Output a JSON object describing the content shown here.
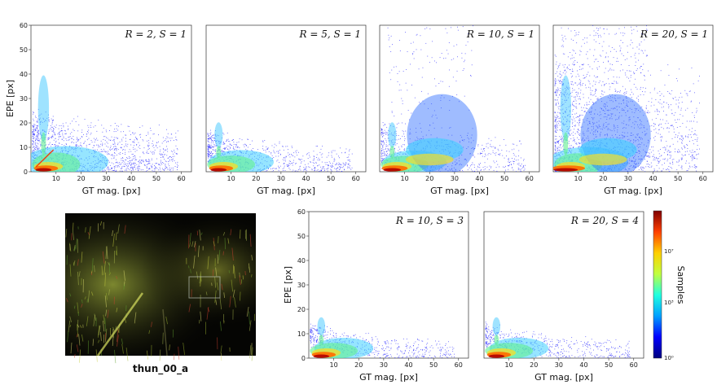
{
  "chart_data": [
    {
      "type": "heatmap",
      "id": "p1",
      "title": "R = 2, S = 1",
      "xlabel": "GT mag. [px]",
      "ylabel": "EPE [px]",
      "xlim": [
        0,
        64
      ],
      "ylim": [
        0,
        60
      ],
      "xticks": [
        "10",
        "20",
        "30",
        "40",
        "50",
        "60"
      ],
      "yticks": [
        "0",
        "10",
        "20",
        "30",
        "40",
        "50",
        "60"
      ]
    },
    {
      "type": "heatmap",
      "id": "p2",
      "title": "R = 5, S = 1",
      "xlabel": "GT mag. [px]",
      "ylabel": "",
      "xlim": [
        0,
        64
      ],
      "ylim": [
        0,
        60
      ],
      "xticks": [
        "10",
        "20",
        "30",
        "40",
        "50",
        "60"
      ],
      "yticks": []
    },
    {
      "type": "heatmap",
      "id": "p3",
      "title": "R = 10, S = 1",
      "xlabel": "GT mag. [px]",
      "ylabel": "",
      "xlim": [
        0,
        64
      ],
      "ylim": [
        0,
        60
      ],
      "xticks": [
        "10",
        "20",
        "30",
        "40",
        "50",
        "60"
      ],
      "yticks": []
    },
    {
      "type": "heatmap",
      "id": "p4",
      "title": "R = 20, S = 1",
      "xlabel": "GT mag. [px]",
      "ylabel": "",
      "xlim": [
        0,
        64
      ],
      "ylim": [
        0,
        60
      ],
      "xticks": [
        "10",
        "20",
        "30",
        "40",
        "50",
        "60"
      ],
      "yticks": []
    },
    {
      "type": "heatmap",
      "id": "p5",
      "title": "R = 10, S = 3",
      "xlabel": "GT mag. [px]",
      "ylabel": "EPE [px]",
      "xlim": [
        0,
        64
      ],
      "ylim": [
        0,
        60
      ],
      "xticks": [
        "10",
        "20",
        "30",
        "40",
        "50",
        "60"
      ],
      "yticks": [
        "0",
        "10",
        "20",
        "30",
        "40",
        "50",
        "60"
      ]
    },
    {
      "type": "heatmap",
      "id": "p6",
      "title": "R = 20, S = 4",
      "xlabel": "GT mag. [px]",
      "ylabel": "",
      "xlim": [
        0,
        64
      ],
      "ylim": [
        0,
        60
      ],
      "xticks": [
        "10",
        "20",
        "30",
        "40",
        "50",
        "60"
      ],
      "yticks": []
    }
  ],
  "colorbar": {
    "label": "Samples",
    "scale": "log",
    "tick_labels": [
      "10⁰",
      "10³",
      "10⁷"
    ],
    "colors": [
      "#00007f",
      "#0000ff",
      "#00a0ff",
      "#20ffe0",
      "#c0ff40",
      "#ffd000",
      "#ff4000",
      "#7f0000"
    ]
  },
  "image_caption": "thun_00_a",
  "colors": {
    "low": "#1a1aff",
    "mid": "#30d070",
    "high": "#ff6a00",
    "peak": "#b00000"
  }
}
